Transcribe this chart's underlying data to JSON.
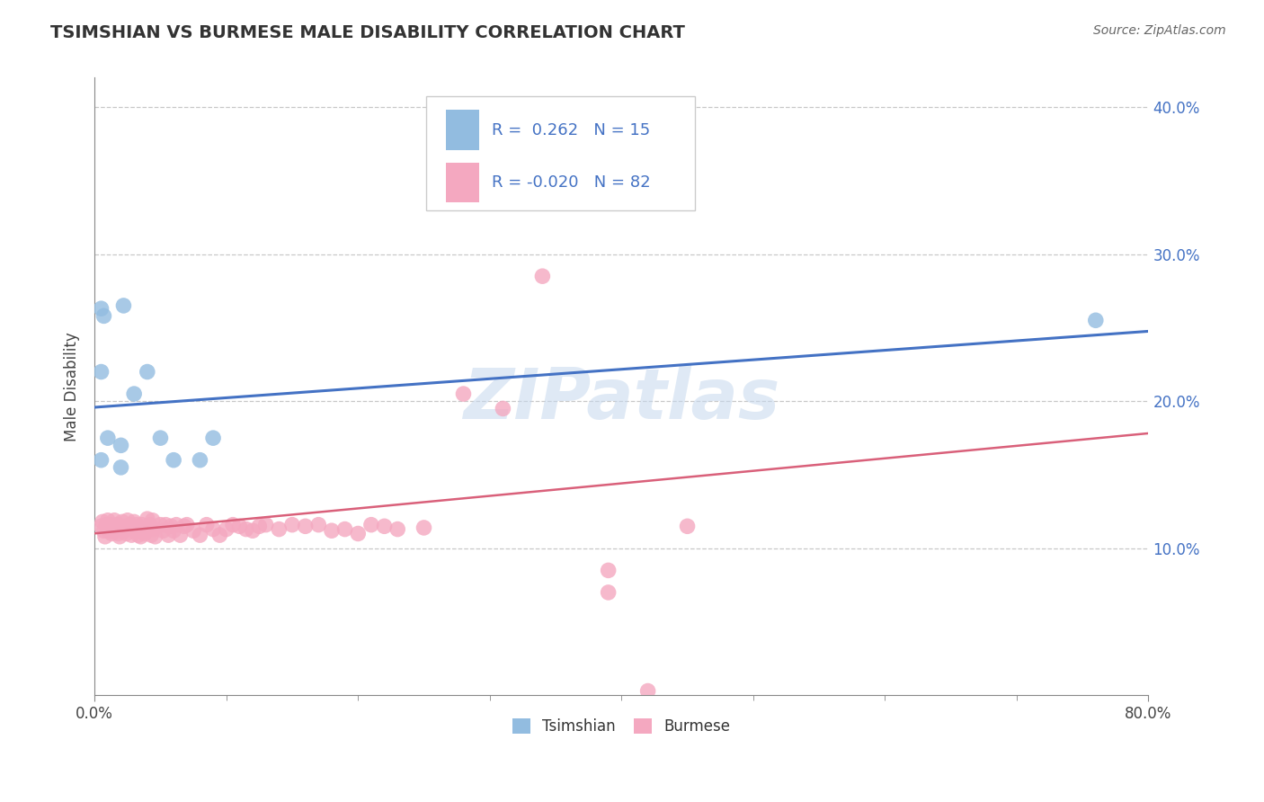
{
  "title": "TSIMSHIAN VS BURMESE MALE DISABILITY CORRELATION CHART",
  "source": "Source: ZipAtlas.com",
  "ylabel": "Male Disability",
  "xlim": [
    0.0,
    0.8
  ],
  "ylim": [
    0.0,
    0.42
  ],
  "xticks_major": [
    0.0,
    0.8
  ],
  "xticks_minor": [
    0.1,
    0.2,
    0.3,
    0.4,
    0.5,
    0.6,
    0.7
  ],
  "yticks": [
    0.1,
    0.2,
    0.3,
    0.4
  ],
  "ytick_labels": [
    "10.0%",
    "20.0%",
    "30.0%",
    "40.0%"
  ],
  "xtick_major_labels": [
    "0.0%",
    "80.0%"
  ],
  "tsimshian_color": "#92bce0",
  "burmese_color": "#f4a8c0",
  "tsimshian_line_color": "#4472c4",
  "burmese_line_color": "#d9607a",
  "grid_color": "#c8c8c8",
  "background_color": "#ffffff",
  "watermark": "ZIPatlas",
  "tsimshian_r": 0.262,
  "tsimshian_n": 15,
  "burmese_r": -0.02,
  "burmese_n": 82,
  "tsimshian_x": [
    0.005,
    0.007,
    0.022,
    0.005,
    0.03,
    0.04,
    0.05,
    0.06,
    0.02,
    0.02,
    0.08,
    0.09,
    0.76,
    0.005,
    0.01
  ],
  "tsimshian_y": [
    0.263,
    0.258,
    0.265,
    0.22,
    0.205,
    0.22,
    0.175,
    0.16,
    0.155,
    0.17,
    0.16,
    0.175,
    0.255,
    0.16,
    0.175
  ],
  "burmese_x": [
    0.005,
    0.006,
    0.007,
    0.008,
    0.009,
    0.01,
    0.01,
    0.011,
    0.012,
    0.013,
    0.014,
    0.015,
    0.016,
    0.017,
    0.018,
    0.019,
    0.02,
    0.021,
    0.022,
    0.023,
    0.024,
    0.025,
    0.026,
    0.027,
    0.028,
    0.03,
    0.031,
    0.032,
    0.033,
    0.034,
    0.035,
    0.036,
    0.037,
    0.038,
    0.04,
    0.041,
    0.042,
    0.043,
    0.044,
    0.045,
    0.046,
    0.05,
    0.052,
    0.054,
    0.056,
    0.058,
    0.06,
    0.062,
    0.065,
    0.068,
    0.07,
    0.075,
    0.08,
    0.085,
    0.09,
    0.095,
    0.1,
    0.105,
    0.11,
    0.115,
    0.12,
    0.125,
    0.13,
    0.14,
    0.15,
    0.16,
    0.17,
    0.18,
    0.19,
    0.2,
    0.21,
    0.22,
    0.23,
    0.25,
    0.28,
    0.31,
    0.34,
    0.38,
    0.42,
    0.45,
    0.39,
    0.39
  ],
  "burmese_y": [
    0.115,
    0.118,
    0.112,
    0.108,
    0.116,
    0.114,
    0.119,
    0.112,
    0.116,
    0.11,
    0.115,
    0.119,
    0.113,
    0.116,
    0.11,
    0.108,
    0.115,
    0.118,
    0.112,
    0.115,
    0.11,
    0.119,
    0.113,
    0.116,
    0.109,
    0.118,
    0.112,
    0.116,
    0.109,
    0.113,
    0.108,
    0.116,
    0.113,
    0.11,
    0.12,
    0.113,
    0.116,
    0.109,
    0.119,
    0.113,
    0.108,
    0.116,
    0.112,
    0.116,
    0.109,
    0.115,
    0.112,
    0.116,
    0.109,
    0.115,
    0.116,
    0.112,
    0.109,
    0.116,
    0.113,
    0.109,
    0.113,
    0.116,
    0.115,
    0.113,
    0.112,
    0.115,
    0.116,
    0.113,
    0.116,
    0.115,
    0.116,
    0.112,
    0.113,
    0.11,
    0.116,
    0.115,
    0.113,
    0.114,
    0.205,
    0.195,
    0.285,
    0.335,
    0.003,
    0.115,
    0.085,
    0.07
  ]
}
